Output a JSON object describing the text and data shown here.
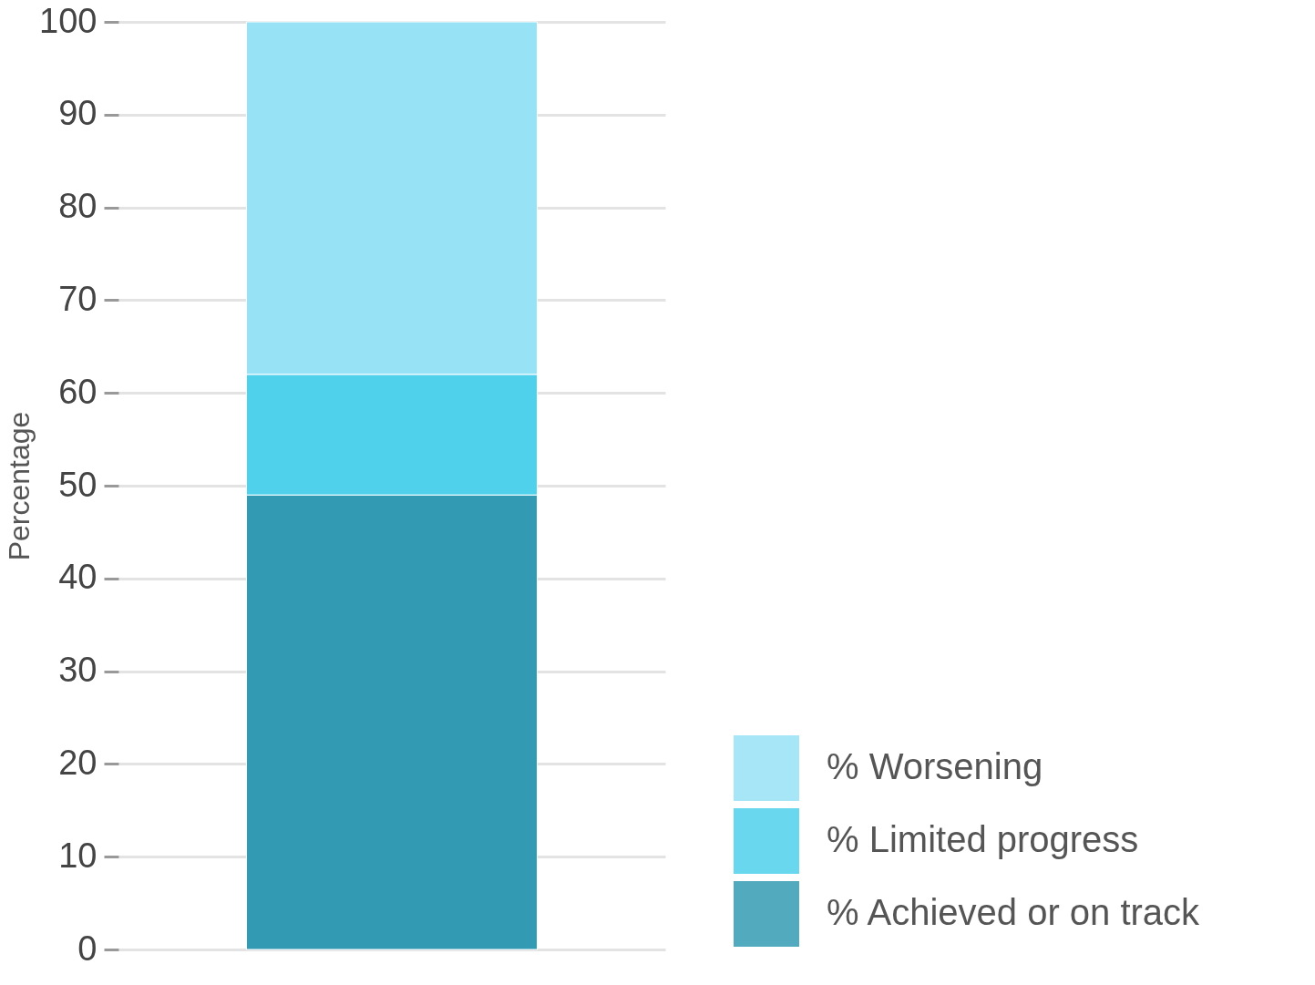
{
  "chart_data": {
    "type": "bar",
    "categories": [
      null
    ],
    "stacked": true,
    "ylabel": "Percentage",
    "ylim": [
      0,
      100
    ],
    "yticks": [
      0,
      10,
      20,
      30,
      40,
      50,
      60,
      70,
      80,
      90,
      100
    ],
    "grid": "y",
    "legend": "bottom right",
    "tick_labels": "y",
    "series": [
      {
        "name": "% Achieved or on track",
        "color": "#329bb3",
        "values": [
          49
        ]
      },
      {
        "name": "% Limited progress",
        "color": "#4fd0eb",
        "values": [
          13
        ]
      },
      {
        "name": "% Worsening",
        "color": "#97e2f4",
        "values": [
          38
        ]
      }
    ]
  }
}
